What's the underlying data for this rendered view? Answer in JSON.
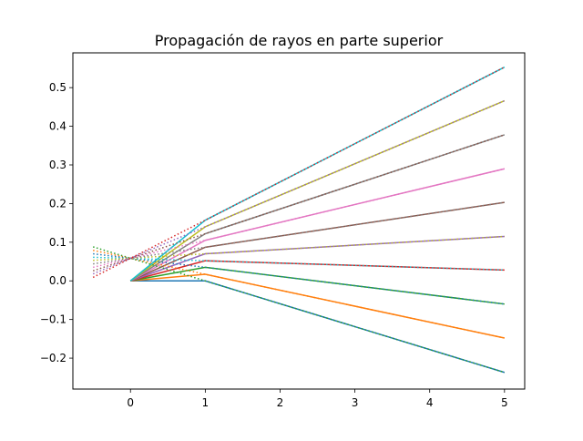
{
  "chart_data": {
    "type": "line",
    "title": "Propagación de rayos en parte superior",
    "xlabel": "",
    "ylabel": "",
    "xlim": [
      -0.77,
      5.27
    ],
    "ylim": [
      -0.28,
      0.59
    ],
    "xticks": [
      0,
      1,
      2,
      3,
      4,
      5
    ],
    "xtick_labels": [
      "0",
      "1",
      "2",
      "3",
      "4",
      "5"
    ],
    "yticks": [
      -0.2,
      -0.1,
      0.0,
      0.1,
      0.2,
      0.3,
      0.4,
      0.5
    ],
    "ytick_labels": [
      "−0.2",
      "−0.1",
      "0.0",
      "0.1",
      "0.2",
      "0.3",
      "0.4",
      "0.5"
    ],
    "grid": false,
    "legend": false,
    "colors": [
      "#1f77b4",
      "#ff7f0e",
      "#2ca02c",
      "#d62728",
      "#9467bd",
      "#8c564b",
      "#e377c2",
      "#7f7f7f",
      "#bcbd22",
      "#17becf"
    ],
    "solid_rays": [
      {
        "x": [
          0,
          1,
          5
        ],
        "y": [
          0,
          0.0,
          -0.237
        ]
      },
      {
        "x": [
          0,
          1,
          5
        ],
        "y": [
          0,
          0.017,
          -0.148
        ]
      },
      {
        "x": [
          0,
          1,
          5
        ],
        "y": [
          0,
          0.035,
          -0.06
        ]
      },
      {
        "x": [
          0,
          1,
          5
        ],
        "y": [
          0,
          0.052,
          0.028
        ]
      },
      {
        "x": [
          0,
          1,
          5
        ],
        "y": [
          0,
          0.07,
          0.115
        ]
      },
      {
        "x": [
          0,
          1,
          5
        ],
        "y": [
          0,
          0.087,
          0.203
        ]
      },
      {
        "x": [
          0,
          1,
          5
        ],
        "y": [
          0,
          0.105,
          0.29
        ]
      },
      {
        "x": [
          0,
          1,
          5
        ],
        "y": [
          0,
          0.122,
          0.378
        ]
      },
      {
        "x": [
          0,
          1,
          5
        ],
        "y": [
          0,
          0.14,
          0.466
        ]
      },
      {
        "x": [
          0,
          1,
          5
        ],
        "y": [
          0,
          0.157,
          0.553
        ]
      }
    ],
    "dotted_rays": [
      {
        "x": [
          -0.5,
          1,
          5
        ],
        "y": [
          0.088,
          0.0,
          -0.237
        ]
      },
      {
        "x": [
          -0.5,
          1,
          5
        ],
        "y": [
          0.079,
          0.017,
          -0.148
        ]
      },
      {
        "x": [
          -0.5,
          1,
          5
        ],
        "y": [
          0.07,
          0.035,
          -0.06
        ]
      },
      {
        "x": [
          -0.5,
          1,
          5
        ],
        "y": [
          0.061,
          0.052,
          0.028
        ]
      },
      {
        "x": [
          -0.5,
          1,
          5
        ],
        "y": [
          0.053,
          0.07,
          0.115
        ]
      },
      {
        "x": [
          -0.5,
          1,
          5
        ],
        "y": [
          0.044,
          0.087,
          0.203
        ]
      },
      {
        "x": [
          -0.5,
          1,
          5
        ],
        "y": [
          0.035,
          0.105,
          0.29
        ]
      },
      {
        "x": [
          -0.5,
          1,
          5
        ],
        "y": [
          0.026,
          0.122,
          0.378
        ]
      },
      {
        "x": [
          -0.5,
          1,
          5
        ],
        "y": [
          0.018,
          0.14,
          0.466
        ]
      },
      {
        "x": [
          -0.5,
          1,
          5
        ],
        "y": [
          0.009,
          0.157,
          0.553
        ]
      }
    ]
  }
}
